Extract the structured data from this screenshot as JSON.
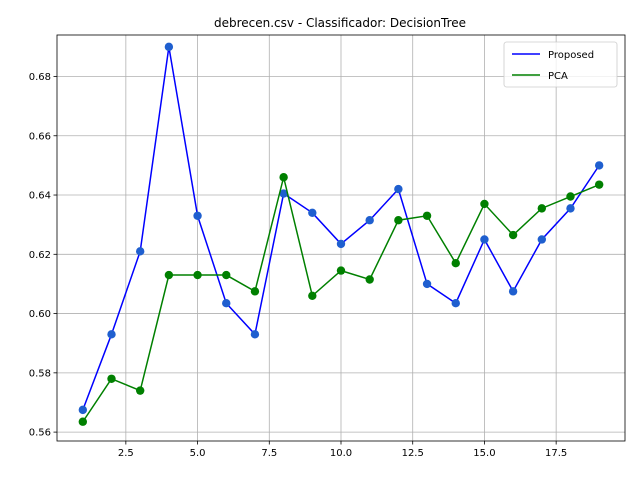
{
  "chart_data": {
    "type": "line",
    "title": "debrecen.csv - Classificador: DecisionTree",
    "xlabel": "",
    "ylabel": "",
    "xlim": [
      0.1,
      19.9
    ],
    "ylim": [
      0.557,
      0.694
    ],
    "xticks": [
      2.5,
      5.0,
      7.5,
      10.0,
      12.5,
      15.0,
      17.5
    ],
    "xtick_labels": [
      "2.5",
      "5.0",
      "7.5",
      "10.0",
      "12.5",
      "15.0",
      "17.5"
    ],
    "yticks": [
      0.56,
      0.58,
      0.6,
      0.62,
      0.64,
      0.66,
      0.68
    ],
    "ytick_labels": [
      "0.56",
      "0.58",
      "0.60",
      "0.62",
      "0.64",
      "0.66",
      "0.68"
    ],
    "grid": true,
    "legend_position": "top-right",
    "x": [
      1,
      2,
      3,
      4,
      5,
      6,
      7,
      8,
      9,
      10,
      11,
      12,
      13,
      14,
      15,
      16,
      17,
      18,
      19
    ],
    "series": [
      {
        "name": "Proposed",
        "color": "#0000ff",
        "marker_color": "#1f5fcf",
        "values": [
          0.5675,
          0.593,
          0.621,
          0.69,
          0.633,
          0.6035,
          0.593,
          0.6405,
          0.634,
          0.6235,
          0.6315,
          0.642,
          0.61,
          0.6035,
          0.625,
          0.6075,
          0.625,
          0.6355,
          0.65
        ]
      },
      {
        "name": "PCA",
        "color": "#008000",
        "marker_color": "#008000",
        "values": [
          0.5635,
          0.578,
          0.574,
          0.613,
          0.613,
          0.613,
          0.6075,
          0.646,
          0.606,
          0.6145,
          0.6115,
          0.6315,
          0.633,
          0.617,
          0.637,
          0.6265,
          0.6355,
          0.6395,
          0.6435
        ]
      }
    ]
  }
}
